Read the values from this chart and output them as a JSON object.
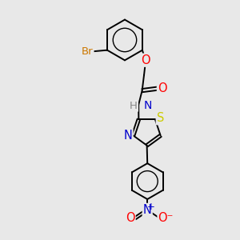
{
  "background_color": "#e8e8e8",
  "bond_color": "#000000",
  "atom_colors": {
    "Br": "#cc7700",
    "O": "#ff0000",
    "N": "#0000cc",
    "S": "#cccc00",
    "H": "#888888",
    "C": "#000000"
  },
  "bond_width": 1.4,
  "dbo": 0.055,
  "font_size": 9.5,
  "figsize": [
    3.0,
    3.0
  ],
  "dpi": 100
}
